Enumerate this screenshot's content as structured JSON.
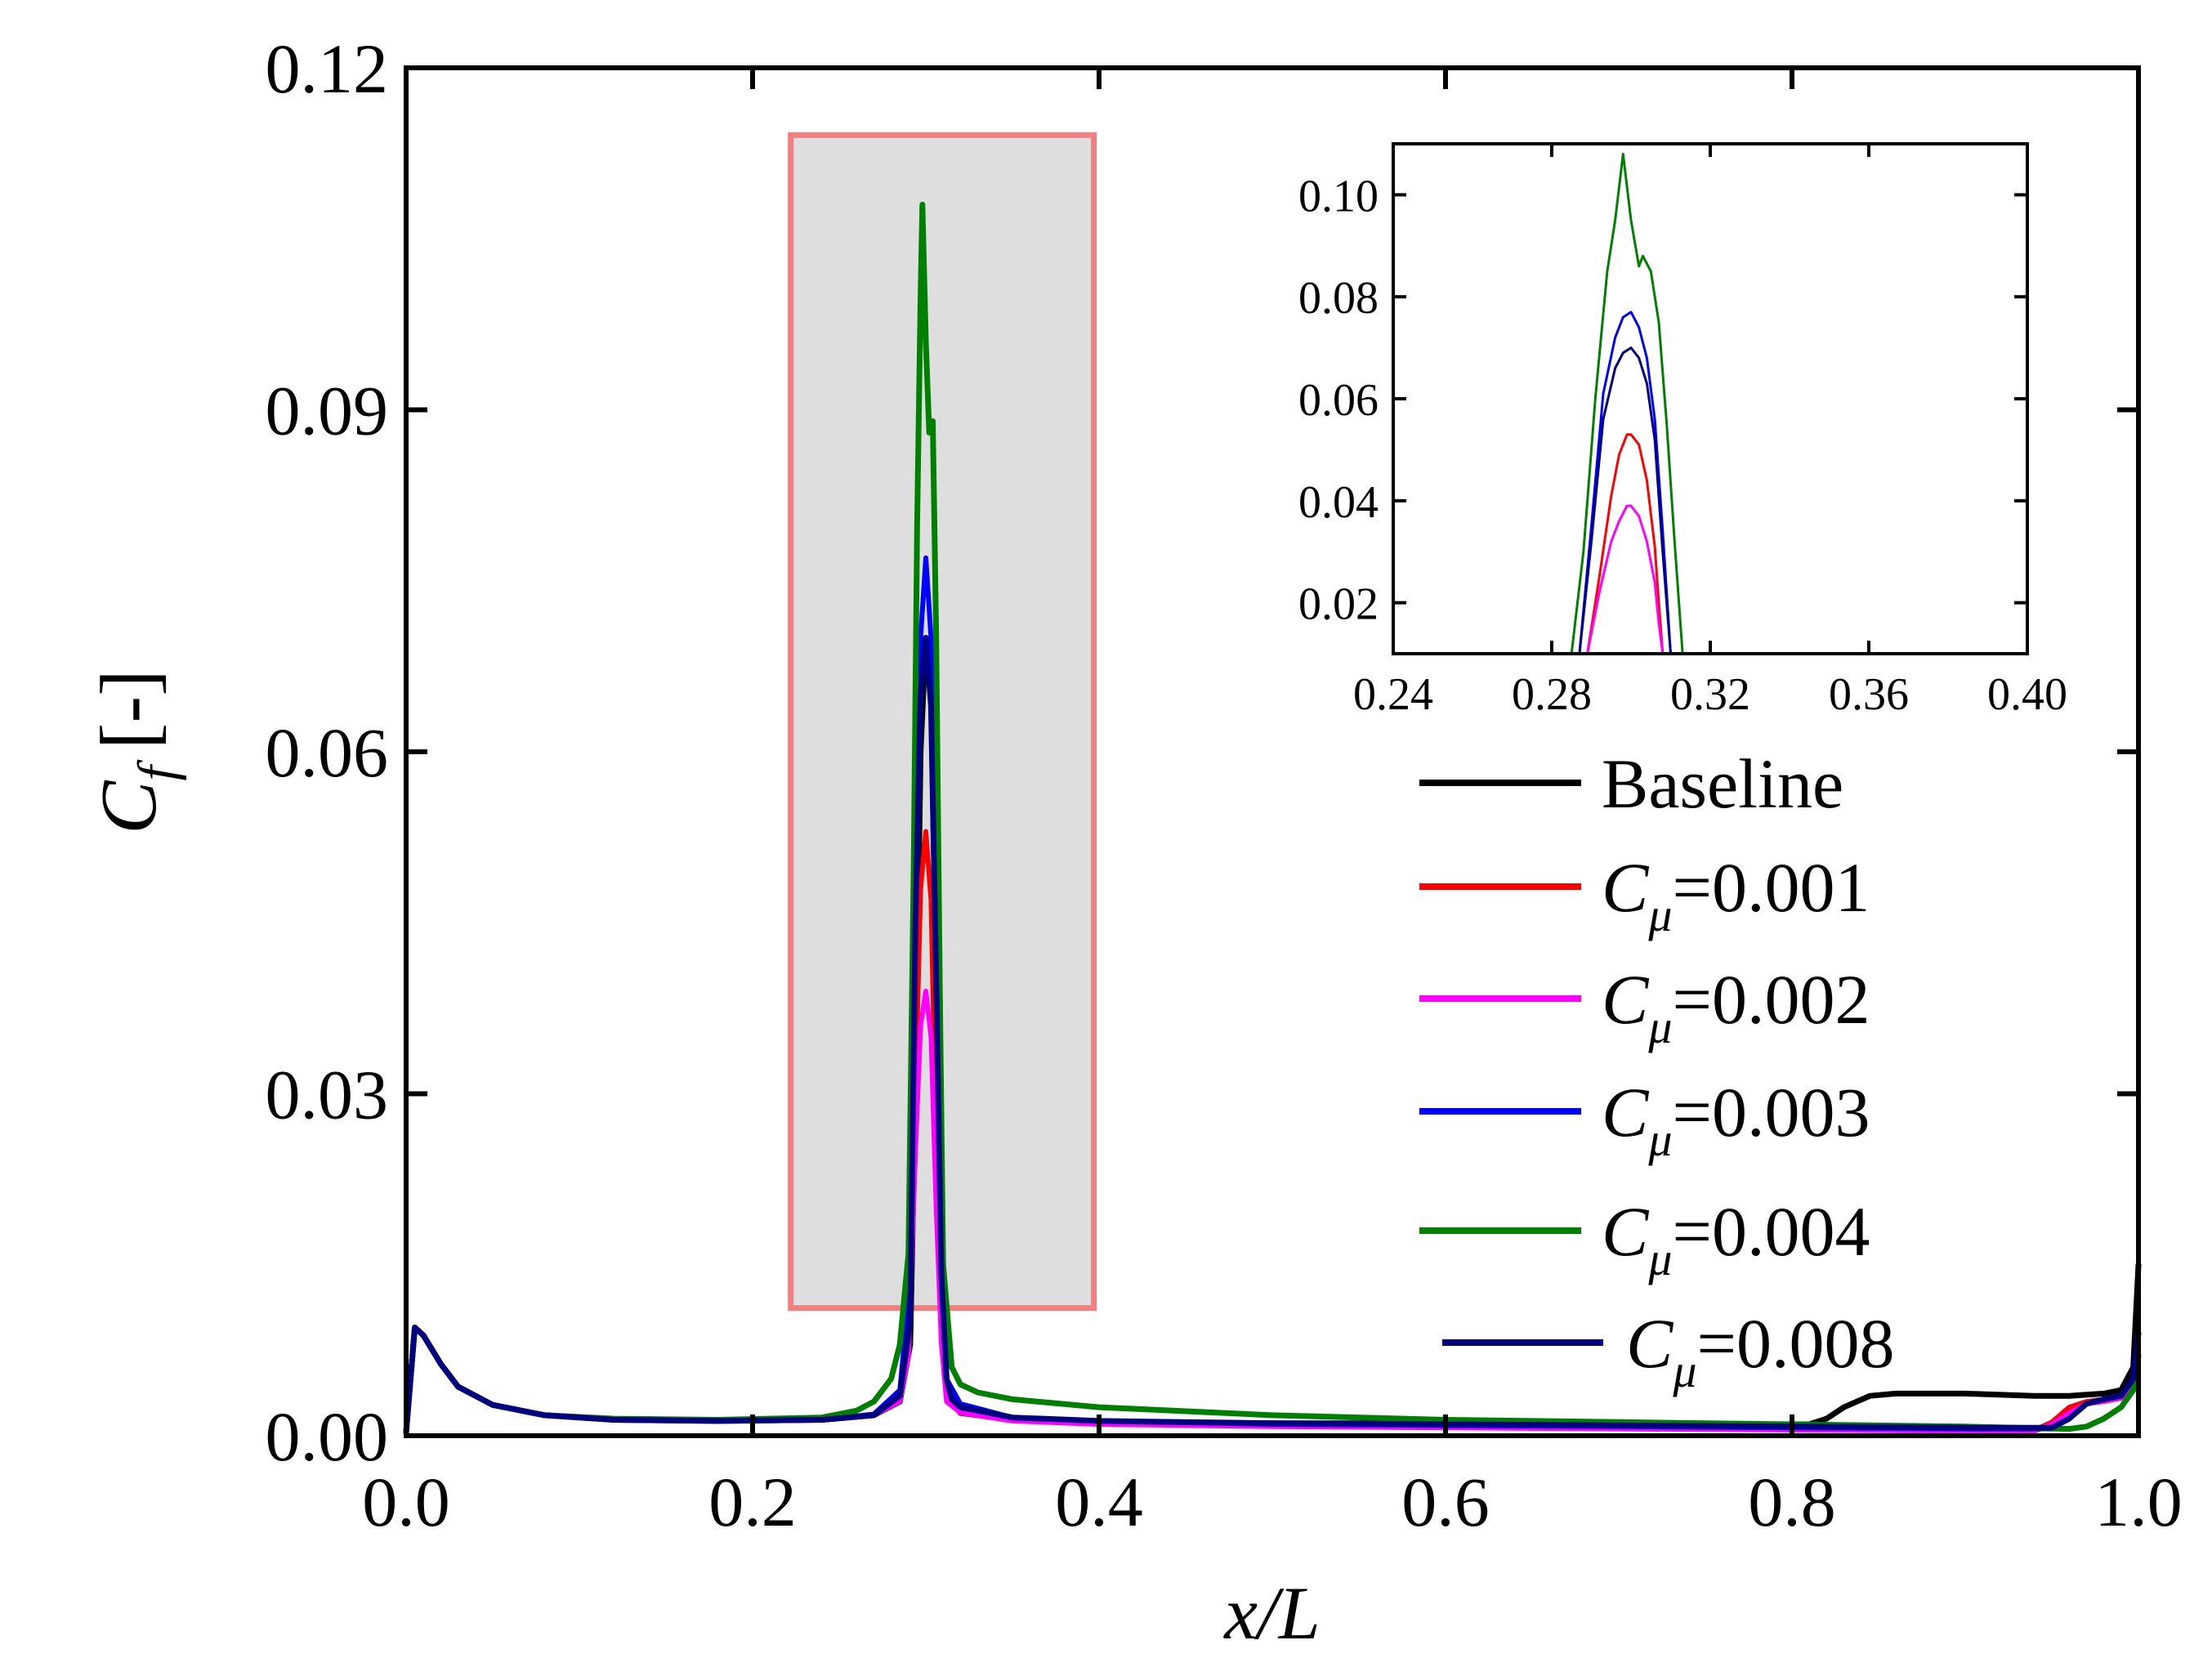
{
  "chart_data": [
    {
      "id": "main",
      "type": "line",
      "title": "",
      "xlabel": "x/L",
      "ylabel": "C_f [-]",
      "ylabel_symbol": "C",
      "ylabel_sub": "f",
      "ylabel_suffix": "[-]",
      "xlim": [
        0.0,
        1.0
      ],
      "ylim": [
        0.0,
        0.12
      ],
      "xticks": [
        0.0,
        0.2,
        0.4,
        0.6,
        0.8,
        1.0
      ],
      "xtick_labels": [
        "0.0",
        "0.2",
        "0.4",
        "0.6",
        "0.8",
        "1.0"
      ],
      "yticks": [
        0.0,
        0.03,
        0.06,
        0.09,
        0.12
      ],
      "ytick_labels": [
        "0.00",
        "0.03",
        "0.06",
        "0.09",
        "0.12"
      ],
      "grid": false,
      "legend_position": "right",
      "highlight_region": {
        "x": [
          0.222,
          0.397
        ],
        "y": [
          0.0112,
          0.1141
        ],
        "fill": "#dedede",
        "stroke": "#f08080"
      },
      "series": [
        {
          "name": "Baseline",
          "sym": "",
          "sub": "",
          "value": "",
          "color": "#000000",
          "width": 7,
          "x": [
            0.0,
            0.005,
            0.01,
            0.02,
            0.03,
            0.05,
            0.08,
            0.12,
            0.18,
            0.24,
            0.27,
            0.285,
            0.291,
            0.294,
            0.297,
            0.3,
            0.303,
            0.306,
            0.309,
            0.312,
            0.315,
            0.32,
            0.35,
            0.4,
            0.5,
            0.6,
            0.7,
            0.78,
            0.8,
            0.81,
            0.82,
            0.83,
            0.845,
            0.86,
            0.9,
            0.94,
            0.96,
            0.98,
            0.99,
            0.997,
            1.0
          ],
          "y": [
            0.0003,
            0.0095,
            0.0088,
            0.0063,
            0.0043,
            0.0027,
            0.0018,
            0.0014,
            0.0013,
            0.0014,
            0.0018,
            0.003,
            0.008,
            0.03,
            0.06,
            0.07,
            0.065,
            0.04,
            0.015,
            0.005,
            0.003,
            0.002,
            0.0014,
            0.0012,
            0.0011,
            0.0011,
            0.001,
            0.001,
            0.001,
            0.001,
            0.0015,
            0.0025,
            0.0035,
            0.0037,
            0.0037,
            0.0035,
            0.0035,
            0.0037,
            0.004,
            0.006,
            0.015
          ]
        },
        {
          "name": "",
          "sym": "C",
          "sub": "μ",
          "value": "=0.001",
          "color": "#ff0000",
          "width": 6,
          "x": [
            0.0,
            0.005,
            0.01,
            0.02,
            0.03,
            0.05,
            0.08,
            0.12,
            0.18,
            0.24,
            0.27,
            0.285,
            0.29,
            0.294,
            0.297,
            0.3,
            0.303,
            0.306,
            0.309,
            0.312,
            0.32,
            0.35,
            0.4,
            0.5,
            0.6,
            0.7,
            0.8,
            0.9,
            0.94,
            0.95,
            0.96,
            0.97,
            0.98,
            0.99,
            0.997,
            1.0
          ],
          "y": [
            0.0003,
            0.0095,
            0.0088,
            0.0063,
            0.0043,
            0.0027,
            0.0018,
            0.0014,
            0.0013,
            0.0014,
            0.0018,
            0.0035,
            0.008,
            0.03,
            0.048,
            0.053,
            0.047,
            0.025,
            0.01,
            0.004,
            0.0025,
            0.0015,
            0.0012,
            0.001,
            0.0008,
            0.0007,
            0.0006,
            0.0005,
            0.0005,
            0.0012,
            0.0025,
            0.003,
            0.0032,
            0.0034,
            0.005,
            0.009
          ]
        },
        {
          "name": "",
          "sym": "C",
          "sub": "μ",
          "value": "=0.002",
          "color": "#ff00ff",
          "width": 6,
          "x": [
            0.0,
            0.005,
            0.01,
            0.02,
            0.03,
            0.05,
            0.08,
            0.12,
            0.18,
            0.24,
            0.27,
            0.285,
            0.29,
            0.294,
            0.297,
            0.3,
            0.303,
            0.306,
            0.309,
            0.312,
            0.32,
            0.35,
            0.4,
            0.5,
            0.6,
            0.7,
            0.8,
            0.9,
            0.94,
            0.95,
            0.96,
            0.97,
            0.98,
            0.99,
            0.997,
            1.0
          ],
          "y": [
            0.0003,
            0.0095,
            0.0088,
            0.0063,
            0.0043,
            0.0027,
            0.0018,
            0.0014,
            0.0013,
            0.0014,
            0.0018,
            0.003,
            0.007,
            0.025,
            0.036,
            0.039,
            0.035,
            0.02,
            0.008,
            0.003,
            0.002,
            0.0013,
            0.001,
            0.0008,
            0.0007,
            0.0006,
            0.0005,
            0.0004,
            0.0004,
            0.001,
            0.002,
            0.0028,
            0.003,
            0.0033,
            0.0045,
            0.008
          ]
        },
        {
          "name": "",
          "sym": "C",
          "sub": "μ",
          "value": "=0.003",
          "color": "#0000ff",
          "width": 6,
          "x": [
            0.0,
            0.005,
            0.01,
            0.02,
            0.03,
            0.05,
            0.08,
            0.12,
            0.18,
            0.24,
            0.27,
            0.285,
            0.29,
            0.294,
            0.297,
            0.3,
            0.303,
            0.306,
            0.309,
            0.312,
            0.32,
            0.35,
            0.4,
            0.5,
            0.6,
            0.7,
            0.8,
            0.9,
            0.95,
            0.96,
            0.97,
            0.98,
            0.99,
            0.997,
            1.0
          ],
          "y": [
            0.0003,
            0.0095,
            0.0088,
            0.0063,
            0.0043,
            0.0027,
            0.0018,
            0.0014,
            0.0013,
            0.0014,
            0.0019,
            0.004,
            0.012,
            0.05,
            0.07,
            0.077,
            0.07,
            0.045,
            0.015,
            0.005,
            0.0028,
            0.0016,
            0.0013,
            0.001,
            0.0009,
            0.0008,
            0.0007,
            0.0006,
            0.0006,
            0.0015,
            0.0028,
            0.0032,
            0.0035,
            0.005,
            0.008
          ]
        },
        {
          "name": "",
          "sym": "C",
          "sub": "μ",
          "value": "=0.004",
          "color": "#008000",
          "width": 7,
          "x": [
            0.0,
            0.005,
            0.01,
            0.02,
            0.03,
            0.05,
            0.08,
            0.12,
            0.18,
            0.24,
            0.26,
            0.27,
            0.28,
            0.285,
            0.29,
            0.293,
            0.295,
            0.297,
            0.298,
            0.3,
            0.302,
            0.304,
            0.306,
            0.308,
            0.31,
            0.315,
            0.32,
            0.33,
            0.35,
            0.4,
            0.5,
            0.6,
            0.7,
            0.8,
            0.9,
            0.96,
            0.97,
            0.98,
            0.99,
            0.997,
            1.0
          ],
          "y": [
            0.0003,
            0.0095,
            0.0088,
            0.0063,
            0.0043,
            0.0027,
            0.0018,
            0.0015,
            0.0014,
            0.0016,
            0.0022,
            0.003,
            0.005,
            0.008,
            0.016,
            0.05,
            0.08,
            0.1,
            0.108,
            0.096,
            0.088,
            0.089,
            0.07,
            0.04,
            0.015,
            0.006,
            0.0045,
            0.0038,
            0.0032,
            0.0025,
            0.0018,
            0.0014,
            0.0012,
            0.001,
            0.0008,
            0.0006,
            0.0008,
            0.0015,
            0.0025,
            0.004,
            0.007
          ]
        },
        {
          "name": "",
          "sym": "C",
          "sub": "μ",
          "value": "=0.008",
          "color": "#000080",
          "width": 7,
          "x": [
            0.0,
            0.005,
            0.01,
            0.02,
            0.03,
            0.05,
            0.08,
            0.12,
            0.18,
            0.24,
            0.27,
            0.285,
            0.291,
            0.294,
            0.297,
            0.3,
            0.303,
            0.306,
            0.309,
            0.312,
            0.315,
            0.32,
            0.35,
            0.4,
            0.5,
            0.6,
            0.7,
            0.8,
            0.9,
            0.95,
            0.96,
            0.97,
            0.98,
            0.99,
            0.997,
            1.0
          ],
          "y": [
            0.0003,
            0.0095,
            0.0088,
            0.0063,
            0.0043,
            0.0027,
            0.0018,
            0.0014,
            0.0013,
            0.0014,
            0.0018,
            0.0035,
            0.01,
            0.045,
            0.065,
            0.07,
            0.064,
            0.04,
            0.014,
            0.005,
            0.0032,
            0.0025,
            0.0016,
            0.0013,
            0.0011,
            0.001,
            0.0009,
            0.0008,
            0.0007,
            0.0007,
            0.0015,
            0.0028,
            0.0032,
            0.0035,
            0.005,
            0.009
          ]
        }
      ]
    },
    {
      "id": "inset",
      "type": "line",
      "title": "",
      "xlabel": "",
      "ylabel": "",
      "xlim": [
        0.24,
        0.4
      ],
      "ylim": [
        0.01,
        0.11
      ],
      "xticks": [
        0.24,
        0.28,
        0.32,
        0.36,
        0.4
      ],
      "xtick_labels": [
        "0.24",
        "0.28",
        "0.32",
        "0.36",
        "0.40"
      ],
      "yticks": [
        0.02,
        0.04,
        0.06,
        0.08,
        0.1
      ],
      "ytick_labels": [
        "0.02",
        "0.04",
        "0.06",
        "0.08",
        "0.10"
      ],
      "grid": false,
      "series": [
        {
          "name": "C_μ=0.001",
          "color": "#ff0000",
          "x": [
            0.289,
            0.292,
            0.295,
            0.297,
            0.299,
            0.3,
            0.302,
            0.304,
            0.306,
            0.307,
            0.308
          ],
          "y": [
            0.01,
            0.025,
            0.041,
            0.049,
            0.053,
            0.053,
            0.051,
            0.044,
            0.031,
            0.02,
            0.01
          ]
        },
        {
          "name": "C_μ=0.002",
          "color": "#ff00ff",
          "x": [
            0.289,
            0.292,
            0.295,
            0.297,
            0.299,
            0.3,
            0.302,
            0.304,
            0.306,
            0.307,
            0.308
          ],
          "y": [
            0.01,
            0.022,
            0.032,
            0.036,
            0.039,
            0.039,
            0.037,
            0.032,
            0.024,
            0.016,
            0.01
          ]
        },
        {
          "name": "C_μ=0.003",
          "color": "#0000ff",
          "x": [
            0.287,
            0.29,
            0.293,
            0.296,
            0.298,
            0.3,
            0.302,
            0.304,
            0.306,
            0.308,
            0.31
          ],
          "y": [
            0.01,
            0.035,
            0.061,
            0.072,
            0.076,
            0.077,
            0.074,
            0.068,
            0.056,
            0.034,
            0.01
          ]
        },
        {
          "name": "C_μ=0.008",
          "color": "#000080",
          "x": [
            0.287,
            0.29,
            0.293,
            0.296,
            0.298,
            0.3,
            0.302,
            0.304,
            0.306,
            0.308,
            0.31
          ],
          "y": [
            0.01,
            0.032,
            0.056,
            0.066,
            0.069,
            0.07,
            0.068,
            0.063,
            0.052,
            0.03,
            0.01
          ]
        },
        {
          "name": "C_μ=0.004",
          "color": "#008000",
          "x": [
            0.285,
            0.288,
            0.291,
            0.294,
            0.296,
            0.298,
            0.3,
            0.302,
            0.303,
            0.305,
            0.307,
            0.309,
            0.311,
            0.313
          ],
          "y": [
            0.01,
            0.03,
            0.06,
            0.085,
            0.095,
            0.108,
            0.095,
            0.086,
            0.088,
            0.085,
            0.075,
            0.055,
            0.032,
            0.01
          ]
        }
      ]
    }
  ]
}
